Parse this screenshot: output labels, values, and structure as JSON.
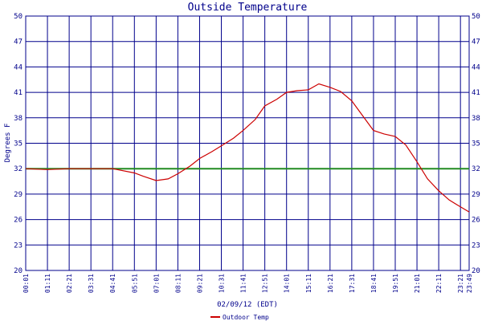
{
  "chart_data": {
    "type": "line",
    "title": "Outside Temperature",
    "xlabel": "02/09/12 (EDT)",
    "ylabel": "Degrees F",
    "ylim": [
      20,
      50
    ],
    "y_ticks": [
      20,
      23,
      26,
      29,
      32,
      35,
      38,
      41,
      44,
      47,
      50
    ],
    "x_ticks": [
      "00:01",
      "01:11",
      "02:21",
      "03:31",
      "04:41",
      "05:51",
      "07:01",
      "08:11",
      "09:21",
      "10:31",
      "11:41",
      "12:51",
      "14:01",
      "15:11",
      "16:21",
      "17:31",
      "18:41",
      "19:51",
      "21:01",
      "22:11",
      "23:21",
      "23:49"
    ],
    "grid": true,
    "legend_position": "bottom",
    "reference_line": {
      "value": 32,
      "color": "#228b22"
    },
    "series": [
      {
        "name": "Outdoor Temp",
        "color": "#cc0000",
        "x": [
          "00:01",
          "01:11",
          "02:21",
          "03:31",
          "04:41",
          "05:51",
          "06:20",
          "07:01",
          "07:40",
          "08:11",
          "08:50",
          "09:21",
          "10:00",
          "10:31",
          "11:10",
          "11:41",
          "12:20",
          "12:51",
          "13:30",
          "14:01",
          "14:35",
          "15:11",
          "15:45",
          "16:21",
          "16:55",
          "17:31",
          "18:05",
          "18:41",
          "19:15",
          "19:51",
          "20:25",
          "21:01",
          "21:35",
          "22:11",
          "22:45",
          "23:21",
          "23:49"
        ],
        "y": [
          32.0,
          31.9,
          32.0,
          32.0,
          32.0,
          31.5,
          31.1,
          30.6,
          30.8,
          31.4,
          32.3,
          33.2,
          34.0,
          34.7,
          35.6,
          36.5,
          37.8,
          39.4,
          40.2,
          41.0,
          41.2,
          41.3,
          42.0,
          41.6,
          41.1,
          40.0,
          38.3,
          36.5,
          36.1,
          35.8,
          34.8,
          32.8,
          30.8,
          29.4,
          28.3,
          27.5,
          26.9
        ]
      }
    ]
  }
}
